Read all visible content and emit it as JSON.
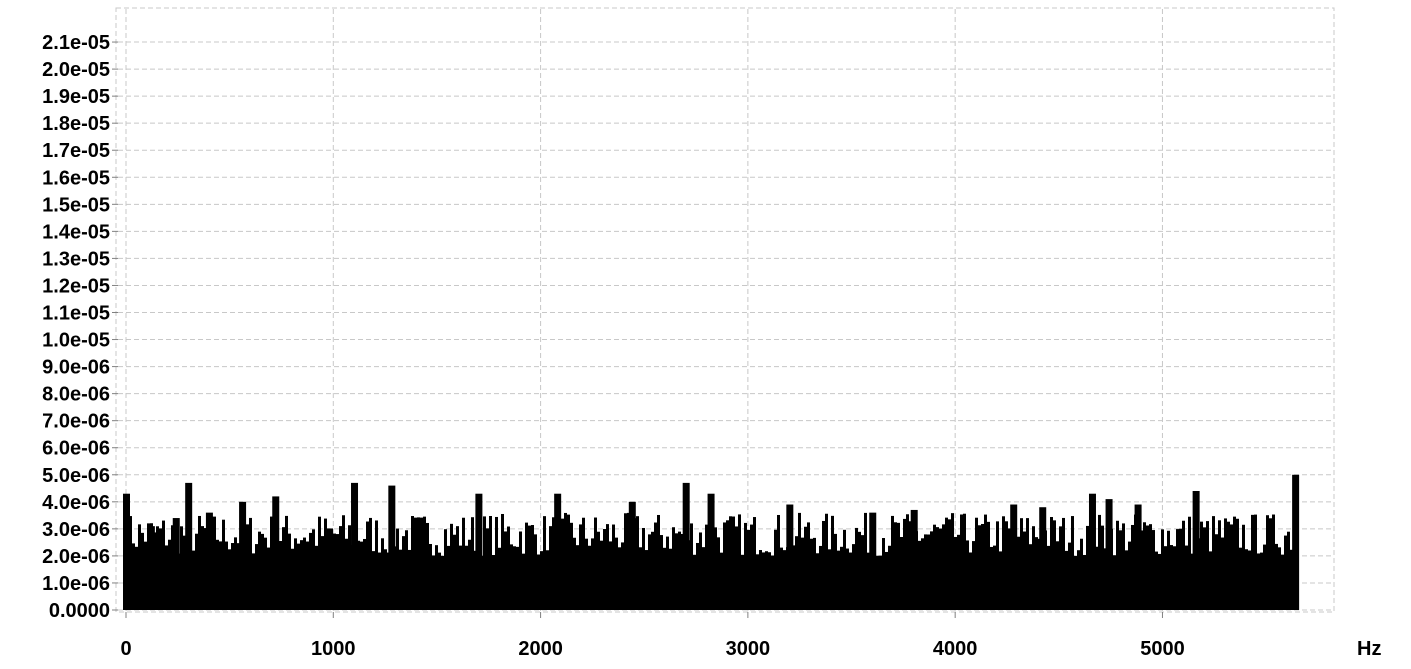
{
  "chart_data": {
    "type": "bar",
    "xlabel": "Hz",
    "ylabel": "",
    "xlim": [
      0,
      5760
    ],
    "ylim": [
      0,
      2.2e-05
    ],
    "x_ticks": [
      {
        "value": 0,
        "label": "0"
      },
      {
        "value": 1000,
        "label": "1000"
      },
      {
        "value": 2000,
        "label": "2000"
      },
      {
        "value": 3000,
        "label": "3000"
      },
      {
        "value": 4000,
        "label": "4000"
      },
      {
        "value": 5000,
        "label": "5000"
      }
    ],
    "y_ticks": [
      {
        "value": 0,
        "label": "0.0000"
      },
      {
        "value": 1e-06,
        "label": "1.0e-06"
      },
      {
        "value": 2e-06,
        "label": "2.0e-06"
      },
      {
        "value": 3e-06,
        "label": "3.0e-06"
      },
      {
        "value": 4e-06,
        "label": "4.0e-06"
      },
      {
        "value": 5e-06,
        "label": "5.0e-06"
      },
      {
        "value": 6e-06,
        "label": "6.0e-06"
      },
      {
        "value": 7e-06,
        "label": "7.0e-06"
      },
      {
        "value": 8e-06,
        "label": "8.0e-06"
      },
      {
        "value": 9e-06,
        "label": "9.0e-06"
      },
      {
        "value": 1e-05,
        "label": "1.0e-05"
      },
      {
        "value": 1.1e-05,
        "label": "1.1e-05"
      },
      {
        "value": 1.2e-05,
        "label": "1.2e-05"
      },
      {
        "value": 1.3e-05,
        "label": "1.3e-05"
      },
      {
        "value": 1.4e-05,
        "label": "1.4e-05"
      },
      {
        "value": 1.5e-05,
        "label": "1.5e-05"
      },
      {
        "value": 1.6e-05,
        "label": "1.6e-05"
      },
      {
        "value": 1.7e-05,
        "label": "1.7e-05"
      },
      {
        "value": 1.8e-05,
        "label": "1.8e-05"
      },
      {
        "value": 1.9e-05,
        "label": "1.9e-05"
      },
      {
        "value": 2e-05,
        "label": "2.0e-05"
      },
      {
        "value": 2.1e-05,
        "label": "2.1e-05"
      }
    ],
    "grid": true,
    "grid_style": "dashed",
    "bar_color": "#000000",
    "series": [
      {
        "x": [
          0,
          120,
          240,
          300,
          400,
          560,
          720,
          1100,
          1280,
          1700,
          2080,
          2440,
          2700,
          2820,
          3200,
          3600,
          3800,
          4280,
          4420,
          4660,
          4740,
          4880,
          5160,
          5640
        ],
        "values": [
          4.3e-06,
          3.1e-06,
          3.4e-06,
          4.7e-06,
          3.6e-06,
          4e-06,
          4.2e-06,
          4.7e-06,
          4.6e-06,
          4.3e-06,
          4.3e-06,
          4e-06,
          4.7e-06,
          4.3e-06,
          3.9e-06,
          3.6e-06,
          3.7e-06,
          3.9e-06,
          3.8e-06,
          4.3e-06,
          4.1e-06,
          3.9e-06,
          4.4e-06,
          5e-06
        ]
      }
    ],
    "noise_band": {
      "x_range": [
        0,
        5650
      ],
      "min": 2e-06,
      "max": 3.6e-06
    }
  }
}
